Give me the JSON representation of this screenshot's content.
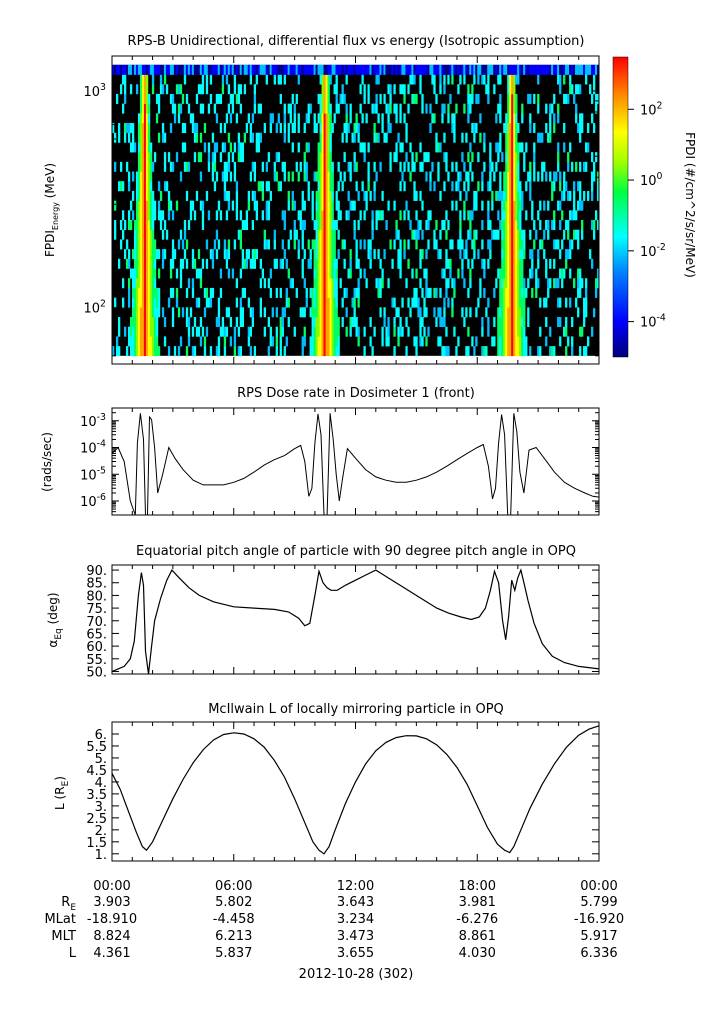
{
  "chart_data": [
    {
      "type": "heatmap",
      "title": "RPS-B  Unidirectional, differential flux vs energy (Isotropic assumption)",
      "ylabel_main": "FPDI",
      "ylabel_sub": "Energy",
      "ylabel_unit": " (MeV)",
      "y_scale": "log",
      "y_ticks": [
        {
          "value": 100,
          "base": "10",
          "exp": "2"
        },
        {
          "value": 1000,
          "base": "10",
          "exp": "3"
        }
      ],
      "ylim": [
        55,
        1450
      ],
      "energy_range": [
        60,
        1320
      ],
      "colorbar": {
        "label": "FPDI (#/cm^2/s/sr/MeV)",
        "scale": "log",
        "range": [
          1e-05,
          3000.0
        ],
        "ticks": [
          {
            "value": 0.0001,
            "base": "10",
            "exp": "-4"
          },
          {
            "value": 0.01,
            "base": "10",
            "exp": "-2"
          },
          {
            "value": 1,
            "base": "10",
            "exp": "0"
          },
          {
            "value": 100,
            "base": "10",
            "exp": "2"
          }
        ]
      },
      "belt_passes_hours": [
        1.6,
        10.5,
        19.7
      ],
      "description_colors": [
        "#00008b",
        "#0000ff",
        "#00bfff",
        "#00ffff",
        "#00ff66",
        "#7fff00",
        "#ffff00",
        "#ffa500",
        "#ff0000"
      ]
    },
    {
      "type": "line",
      "title": "RPS  Dose rate in Dosimeter 1 (front)",
      "ylabel": "(rads/sec)",
      "y_scale": "log",
      "ylim": [
        3e-07,
        0.003
      ],
      "y_ticks": [
        {
          "value": 1e-06,
          "base": "10",
          "exp": "-6"
        },
        {
          "value": 1e-05,
          "base": "10",
          "exp": "-5"
        },
        {
          "value": 0.0001,
          "base": "10",
          "exp": "-4"
        },
        {
          "value": 0.001,
          "base": "10",
          "exp": "-3"
        }
      ],
      "x": [
        0,
        0.3,
        0.6,
        0.9,
        1.15,
        1.25,
        1.4,
        1.55,
        1.65,
        1.75,
        1.85,
        1.95,
        2.1,
        2.25,
        2.5,
        2.8,
        3.1,
        3.5,
        4.0,
        4.5,
        5.0,
        5.5,
        6.0,
        6.5,
        7.0,
        7.5,
        8.0,
        8.5,
        9.0,
        9.3,
        9.5,
        9.7,
        9.85,
        10.0,
        10.15,
        10.3,
        10.45,
        10.6,
        10.75,
        10.9,
        11.05,
        11.2,
        11.35,
        11.6,
        12.0,
        12.5,
        13.0,
        13.5,
        14.0,
        14.5,
        15.0,
        15.5,
        16.0,
        16.5,
        17.0,
        17.5,
        18.0,
        18.3,
        18.55,
        18.75,
        18.9,
        19.05,
        19.2,
        19.35,
        19.5,
        19.65,
        19.8,
        19.95,
        20.1,
        20.3,
        20.55,
        20.9,
        21.3,
        21.8,
        22.3,
        22.8,
        23.3,
        23.7,
        24.0
      ],
      "y": [
        6e-05,
        0.0001,
        3e-05,
        1e-06,
        3e-07,
        0.00015,
        0.0019,
        0.0002,
        3e-07,
        3e-07,
        0.0014,
        0.0011,
        0.0001,
        2e-06,
        1e-05,
        0.0001,
        4e-05,
        1.5e-05,
        6e-06,
        4e-06,
        4e-06,
        4e-06,
        5e-06,
        7e-06,
        1.2e-05,
        2.2e-05,
        3.5e-05,
        5e-05,
        9e-05,
        0.00012,
        3e-05,
        1.5e-06,
        3e-06,
        0.00015,
        0.0018,
        0.0003,
        3e-07,
        3e-07,
        0.0019,
        0.0002,
        1e-05,
        1e-06,
        6e-06,
        9e-05,
        4e-05,
        1.5e-05,
        8e-06,
        6e-06,
        5e-06,
        5e-06,
        6e-06,
        8e-06,
        1.2e-05,
        2e-05,
        3.5e-05,
        6e-05,
        0.0001,
        0.00013,
        2e-05,
        1.2e-06,
        3e-06,
        0.00015,
        0.0017,
        0.0003,
        3e-07,
        3e-07,
        0.0019,
        0.0004,
        1.2e-05,
        2e-06,
        8e-05,
        0.0001,
        4e-05,
        1.2e-05,
        5e-06,
        3e-06,
        2e-06,
        1.5e-06,
        1.4e-06
      ]
    },
    {
      "type": "line",
      "title": "Equatorial pitch angle of particle with 90 degree pitch angle in OPQ",
      "ylabel": "α",
      "ylabel_sub": "Eq",
      "ylabel_unit": " (deg)",
      "ylim": [
        49,
        92
      ],
      "y_ticks": [
        50,
        55,
        60,
        65,
        70,
        75,
        80,
        85,
        90
      ],
      "y_tick_labels": [
        "50.",
        "55.",
        "60.",
        "65.",
        "70.",
        "75.",
        "80.",
        "85.",
        "90."
      ],
      "x": [
        0,
        0.3,
        0.6,
        0.9,
        1.1,
        1.3,
        1.45,
        1.55,
        1.65,
        1.8,
        1.95,
        2.1,
        2.4,
        2.7,
        2.95,
        3.3,
        3.8,
        4.3,
        5.0,
        6.0,
        7.0,
        8.0,
        8.7,
        9.2,
        9.5,
        9.75,
        10.0,
        10.2,
        10.4,
        10.6,
        10.8,
        11.1,
        11.5,
        12.0,
        12.5,
        13.0,
        13.6,
        14.2,
        14.8,
        15.4,
        16.0,
        16.6,
        17.2,
        17.7,
        18.1,
        18.4,
        18.65,
        18.85,
        19.05,
        19.25,
        19.4,
        19.55,
        19.7,
        19.85,
        20.0,
        20.15,
        20.3,
        20.5,
        20.8,
        21.2,
        21.7,
        22.3,
        23.0,
        24.0
      ],
      "y": [
        50,
        51,
        52,
        55,
        62,
        80,
        89,
        84,
        58,
        49,
        60,
        70,
        79,
        86,
        90,
        87,
        83,
        80,
        77.5,
        75.5,
        75,
        74.5,
        73.5,
        71,
        68,
        69,
        80,
        89.5,
        85,
        83,
        82,
        82,
        84,
        86,
        88,
        90,
        87,
        84,
        81,
        78,
        75,
        73,
        71.5,
        70.5,
        71.5,
        75,
        82,
        89.5,
        85,
        70,
        62.5,
        72,
        86,
        82,
        87,
        90,
        85,
        78,
        69,
        61,
        56,
        53.5,
        52,
        51
      ]
    },
    {
      "type": "line",
      "title": "McIlwain L of locally mirroring particle in OPQ",
      "ylabel": "L (R",
      "ylabel_sub": "E",
      "ylabel_close": ")",
      "ylim": [
        0.7,
        6.5
      ],
      "y_ticks": [
        1,
        1.5,
        2,
        2.5,
        3,
        3.5,
        4,
        4.5,
        5,
        5.5,
        6
      ],
      "y_tick_labels": [
        "1.",
        "1.5",
        "2.",
        "2.5",
        "3.",
        "3.5",
        "4.",
        "4.5",
        "5.",
        "5.5",
        "6."
      ],
      "x": [
        0,
        0.4,
        0.8,
        1.2,
        1.5,
        1.7,
        2.0,
        2.5,
        3.0,
        3.5,
        4.0,
        4.5,
        5.0,
        5.5,
        6.0,
        6.5,
        7.0,
        7.5,
        8.0,
        8.5,
        9.0,
        9.5,
        9.9,
        10.2,
        10.45,
        10.7,
        11.0,
        11.5,
        12.0,
        12.5,
        13.0,
        13.5,
        14.0,
        14.5,
        15.0,
        15.5,
        16.0,
        16.5,
        17.0,
        17.5,
        18.0,
        18.5,
        19.0,
        19.35,
        19.6,
        19.8,
        20.1,
        20.6,
        21.2,
        21.8,
        22.4,
        23.0,
        23.5,
        24.0
      ],
      "y": [
        4.36,
        3.7,
        2.8,
        1.9,
        1.3,
        1.15,
        1.5,
        2.4,
        3.3,
        4.1,
        4.8,
        5.35,
        5.75,
        5.98,
        6.05,
        6.0,
        5.8,
        5.45,
        4.9,
        4.2,
        3.3,
        2.3,
        1.5,
        1.15,
        1.0,
        1.3,
        2.0,
        3.1,
        4.0,
        4.75,
        5.3,
        5.65,
        5.85,
        5.93,
        5.92,
        5.8,
        5.55,
        5.15,
        4.6,
        3.9,
        3.0,
        2.1,
        1.4,
        1.15,
        1.05,
        1.3,
        1.9,
        2.9,
        3.9,
        4.75,
        5.45,
        5.95,
        6.2,
        6.34
      ]
    }
  ],
  "x_axis": {
    "range_hours": [
      0,
      24
    ],
    "major_ticks_hours": [
      0,
      6,
      12,
      18,
      24
    ],
    "tick_labels": [
      "00:00",
      "06:00",
      "12:00",
      "18:00",
      "00:00"
    ],
    "date_label": "2012-10-28 (302)"
  },
  "ephemeris": {
    "rows": [
      {
        "label": "R",
        "label_sub": "E",
        "values": [
          "3.903",
          "5.802",
          "3.643",
          "3.981",
          "5.799"
        ]
      },
      {
        "label": "MLat",
        "label_sub": "",
        "values": [
          "-18.910",
          "-4.458",
          "3.234",
          "-6.276",
          "-16.920"
        ]
      },
      {
        "label": "MLT",
        "label_sub": "",
        "values": [
          "8.824",
          "6.213",
          "3.473",
          "8.861",
          "5.917"
        ]
      },
      {
        "label": "L",
        "label_sub": "",
        "values": [
          "4.361",
          "5.837",
          "3.655",
          "4.030",
          "6.336"
        ]
      }
    ]
  }
}
